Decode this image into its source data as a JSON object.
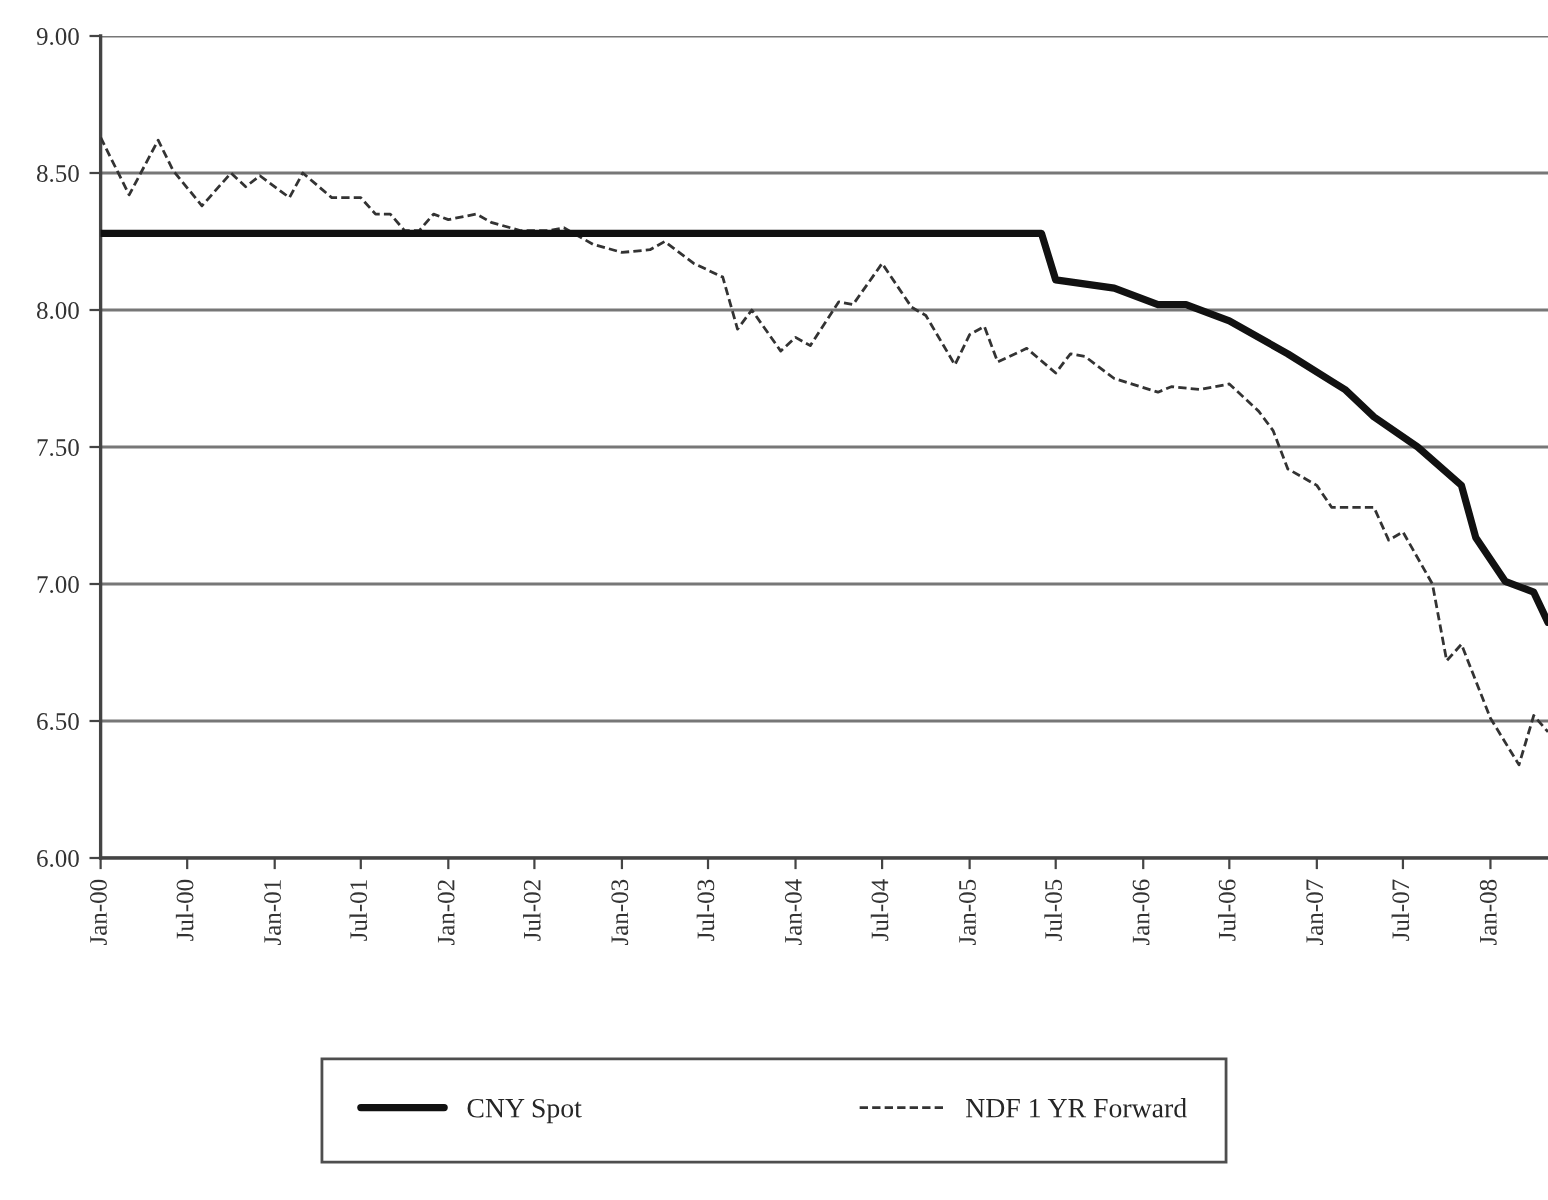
{
  "chart_data": {
    "type": "line",
    "x": [
      "2000-01",
      "2005-06",
      "2005-07",
      "2005-11",
      "2006-02",
      "2006-04",
      "2006-07",
      "2006-11",
      "2007-02",
      "2007-03",
      "2007-05",
      "2007-08",
      "2007-11",
      "2007-12",
      "2008-02",
      "2008-04",
      "2008-05"
    ],
    "series": [
      {
        "name": "CNY Spot",
        "color": "#111111",
        "line_style": "solid",
        "values": [
          8.28,
          8.28,
          8.11,
          8.08,
          8.02,
          8.02,
          7.96,
          7.84,
          7.74,
          7.71,
          7.61,
          7.5,
          7.36,
          7.17,
          7.01,
          6.97,
          6.86
        ]
      },
      {
        "name": "NDF 1 YR Forward",
        "color": "#333333",
        "line_style": "dashed",
        "x": [
          "2000-01",
          "2000-03",
          "2000-05",
          "2000-06",
          "2000-08",
          "2000-10",
          "2000-11",
          "2000-12",
          "2001-02",
          "2001-03",
          "2001-05",
          "2001-07",
          "2001-08",
          "2001-09",
          "2001-10",
          "2001-11",
          "2001-12",
          "2002-01",
          "2002-03",
          "2002-04",
          "2002-06",
          "2002-08",
          "2002-09",
          "2002-11",
          "2003-01",
          "2003-03",
          "2003-04",
          "2003-06",
          "2003-08",
          "2003-09",
          "2003-10",
          "2003-12",
          "2004-01",
          "2004-02",
          "2004-04",
          "2004-05",
          "2004-07",
          "2004-09",
          "2004-10",
          "2004-12",
          "2005-01",
          "2005-02",
          "2005-03",
          "2005-05",
          "2005-07",
          "2005-08",
          "2005-09",
          "2005-11",
          "2006-02",
          "2006-03",
          "2006-05",
          "2006-07",
          "2006-09",
          "2006-10",
          "2006-11",
          "2007-01",
          "2007-02",
          "2007-05",
          "2007-06",
          "2007-07",
          "2007-09",
          "2007-10",
          "2007-11",
          "2008-01",
          "2008-03",
          "2008-04",
          "2008-05"
        ],
        "values": [
          8.63,
          8.42,
          8.62,
          8.51,
          8.38,
          8.5,
          8.45,
          8.49,
          8.41,
          8.5,
          8.41,
          8.41,
          8.35,
          8.35,
          8.29,
          8.29,
          8.35,
          8.33,
          8.35,
          8.32,
          8.29,
          8.29,
          8.3,
          8.24,
          8.21,
          8.22,
          8.25,
          8.17,
          8.12,
          7.93,
          8.0,
          7.85,
          7.9,
          7.87,
          8.03,
          8.02,
          8.17,
          8.01,
          7.98,
          7.8,
          7.91,
          7.94,
          7.81,
          7.86,
          7.77,
          7.84,
          7.83,
          7.75,
          7.7,
          7.72,
          7.71,
          7.73,
          7.63,
          7.56,
          7.42,
          7.36,
          7.28,
          7.28,
          7.16,
          7.19,
          7.0,
          6.72,
          6.78,
          6.51,
          6.34,
          6.52,
          6.46
        ]
      }
    ],
    "xlim": [
      "2000-01",
      "2008-05"
    ],
    "xticks": [
      {
        "value": "2000-01",
        "label": "Jan-00"
      },
      {
        "value": "2000-07",
        "label": "Jul-00"
      },
      {
        "value": "2001-01",
        "label": "Jan-01"
      },
      {
        "value": "2001-07",
        "label": "Jul-01"
      },
      {
        "value": "2002-01",
        "label": "Jan-02"
      },
      {
        "value": "2002-07",
        "label": "Jul-02"
      },
      {
        "value": "2003-01",
        "label": "Jan-03"
      },
      {
        "value": "2003-07",
        "label": "Jul-03"
      },
      {
        "value": "2004-01",
        "label": "Jan-04"
      },
      {
        "value": "2004-07",
        "label": "Jul-04"
      },
      {
        "value": "2005-01",
        "label": "Jan-05"
      },
      {
        "value": "2005-07",
        "label": "Jul-05"
      },
      {
        "value": "2006-01",
        "label": "Jan-06"
      },
      {
        "value": "2006-07",
        "label": "Jul-06"
      },
      {
        "value": "2007-01",
        "label": "Jan-07"
      },
      {
        "value": "2007-07",
        "label": "Jul-07"
      },
      {
        "value": "2008-01",
        "label": "Jan-08"
      }
    ],
    "ylim": [
      6.0,
      9.0
    ],
    "yticks": [
      {
        "value": 6.0,
        "label": "6.00"
      },
      {
        "value": 6.5,
        "label": "6.50"
      },
      {
        "value": 7.0,
        "label": "7.00"
      },
      {
        "value": 7.5,
        "label": "7.50"
      },
      {
        "value": 8.0,
        "label": "8.00"
      },
      {
        "value": 8.5,
        "label": "8.50"
      },
      {
        "value": 9.0,
        "label": "9.00"
      }
    ],
    "grid": "y",
    "legend": "bottom",
    "marker": "none"
  }
}
